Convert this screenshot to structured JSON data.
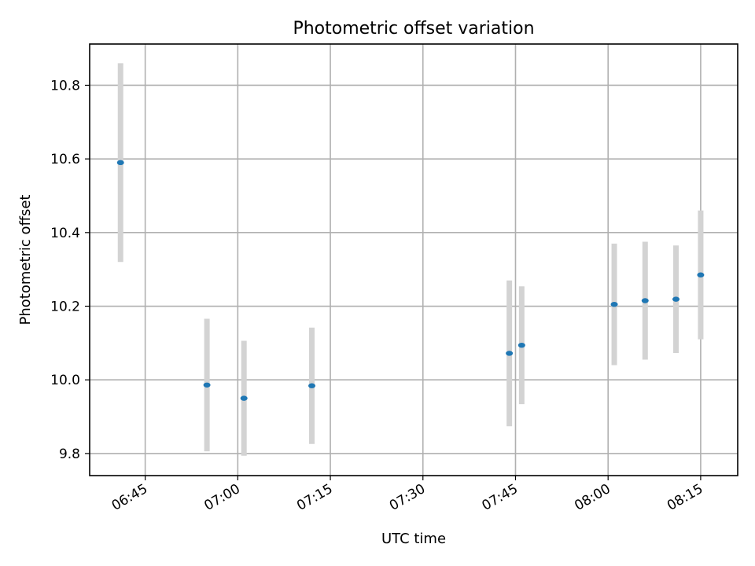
{
  "chart_data": {
    "type": "scatter",
    "title": "Photometric offset variation",
    "xlabel": "UTC time",
    "ylabel": "Photometric offset",
    "x_type": "time",
    "xlim": [
      "06:36",
      "08:21"
    ],
    "ylim": [
      9.74,
      10.912
    ],
    "x_ticks": [
      "06:45",
      "07:00",
      "07:15",
      "07:30",
      "07:45",
      "08:00",
      "08:15"
    ],
    "y_ticks": [
      9.8,
      10.0,
      10.2,
      10.4,
      10.6,
      10.8
    ],
    "grid": true,
    "point_color": "#1f77b4",
    "errorbar_color": "#d3d3d3",
    "series": [
      {
        "points": [
          {
            "x": "06:41",
            "y": 10.59,
            "yerr": 0.27
          },
          {
            "x": "06:55",
            "y": 9.986,
            "yerr": 0.18
          },
          {
            "x": "07:01",
            "y": 9.95,
            "yerr": 0.156
          },
          {
            "x": "07:12",
            "y": 9.984,
            "yerr": 0.158
          },
          {
            "x": "07:44",
            "y": 10.072,
            "yerr": 0.198
          },
          {
            "x": "07:46",
            "y": 10.094,
            "yerr": 0.16
          },
          {
            "x": "08:01",
            "y": 10.205,
            "yerr": 0.165
          },
          {
            "x": "08:06",
            "y": 10.215,
            "yerr": 0.16
          },
          {
            "x": "08:11",
            "y": 10.219,
            "yerr": 0.146
          },
          {
            "x": "08:15",
            "y": 10.285,
            "yerr": 0.175
          }
        ]
      }
    ]
  }
}
